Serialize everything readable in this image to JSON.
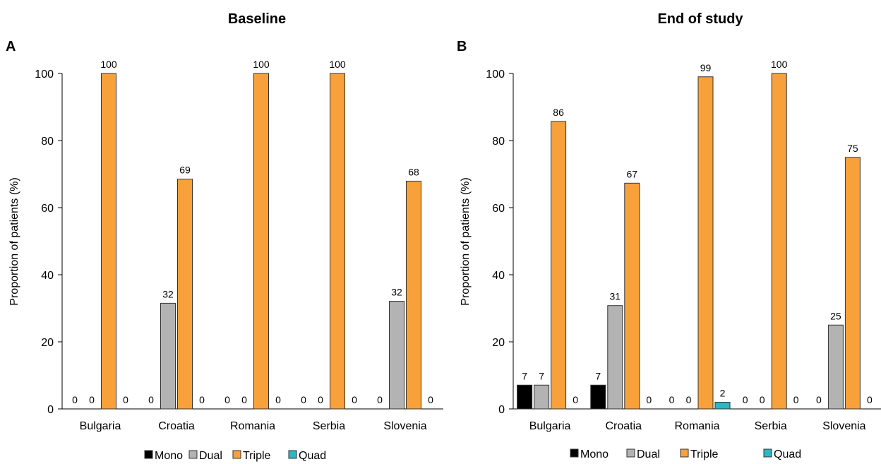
{
  "colors": {
    "Mono": "#000000",
    "Dual": "#b3b3b3",
    "Triple": "#f8a13a",
    "Quad": "#2db7c4",
    "axis": "#000000",
    "bar_stroke": "#333333"
  },
  "chart_data": [
    {
      "type": "bar",
      "panel": "A",
      "title": "Baseline",
      "ylabel": "Proportion of patients (%)",
      "xlabel": "",
      "ylim": [
        0,
        100
      ],
      "yticks": [
        0,
        20,
        40,
        60,
        80,
        100
      ],
      "grid": false,
      "legend": "bottom",
      "categories": [
        "Bulgaria",
        "Croatia",
        "Romania",
        "Serbia",
        "Slovenia"
      ],
      "series": [
        {
          "name": "Mono",
          "values": [
            0,
            0,
            0,
            0,
            0
          ],
          "labels": [
            "0",
            "0",
            "0",
            "0",
            "0"
          ]
        },
        {
          "name": "Dual",
          "values": [
            0,
            31.5,
            0,
            0,
            32.1
          ],
          "labels": [
            "0",
            "32",
            "0",
            "0",
            "32"
          ]
        },
        {
          "name": "Triple",
          "values": [
            100,
            68.5,
            100,
            100,
            67.9
          ],
          "labels": [
            "100",
            "69",
            "100",
            "100",
            "68"
          ]
        },
        {
          "name": "Quad",
          "values": [
            0,
            0,
            0,
            0,
            0
          ],
          "labels": [
            "0",
            "0",
            "0",
            "0",
            "0"
          ]
        }
      ]
    },
    {
      "type": "bar",
      "panel": "B",
      "title": "End of study",
      "ylabel": "Proportion of patients (%)",
      "xlabel": "",
      "ylim": [
        0,
        100
      ],
      "yticks": [
        0,
        20,
        40,
        60,
        80,
        100
      ],
      "grid": false,
      "legend": "bottom",
      "categories": [
        "Bulgaria",
        "Croatia",
        "Romania",
        "Serbia",
        "Slovenia"
      ],
      "series": [
        {
          "name": "Mono",
          "values": [
            7.1,
            7.1,
            0,
            0,
            0
          ],
          "labels": [
            "7",
            "7",
            "0",
            "0",
            "0"
          ]
        },
        {
          "name": "Dual",
          "values": [
            7.1,
            30.8,
            0,
            0,
            25
          ],
          "labels": [
            "7",
            "31",
            "0",
            "0",
            "25"
          ]
        },
        {
          "name": "Triple",
          "values": [
            85.7,
            67.3,
            99,
            100,
            75
          ],
          "labels": [
            "86",
            "67",
            "99",
            "100",
            "75"
          ]
        },
        {
          "name": "Quad",
          "values": [
            0,
            0,
            2,
            0,
            0
          ],
          "labels": [
            "0",
            "0",
            "2",
            "0",
            "0"
          ]
        }
      ]
    }
  ]
}
